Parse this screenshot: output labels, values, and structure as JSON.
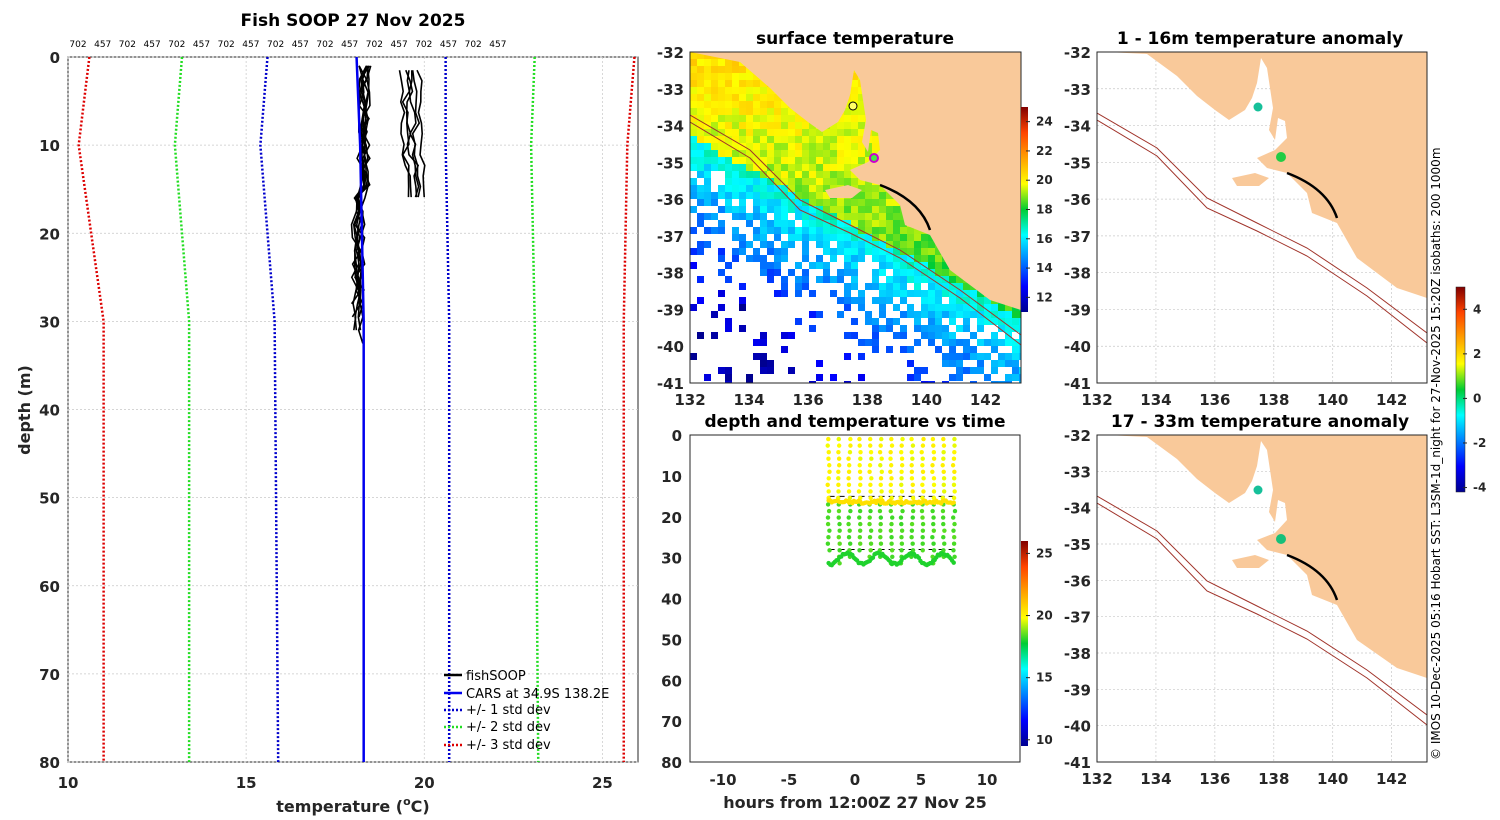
{
  "colors": {
    "land": "#f9c99a",
    "cars": "#0000ee",
    "fish": "#000000",
    "std1": "#0000cc",
    "std2": "#22dd22",
    "std3": "#dd0000",
    "isobath": "#a0332a",
    "grid": "#c8c8c8"
  },
  "chart_data": [
    {
      "id": "profile",
      "type": "line",
      "title": "Fish SOOP 27 Nov 2025",
      "xlabel": "temperature (°C)",
      "xlabel_main": "temperature (",
      "xlabel_sup": "o",
      "xlabel_end": "C)",
      "ylabel": "depth (m)",
      "xlim": [
        10,
        26
      ],
      "ylim": [
        0,
        80
      ],
      "xticks": [
        "10",
        "15",
        "20",
        "25"
      ],
      "yticks": [
        "0",
        "10",
        "20",
        "30",
        "40",
        "50",
        "60",
        "70",
        "80"
      ],
      "top_labels": [
        "702",
        "457",
        "702",
        "457",
        "702",
        "457",
        "702",
        "457",
        "702",
        "457",
        "702",
        "457",
        "702",
        "457",
        "702",
        "457",
        "702",
        "457"
      ],
      "depth": [
        0,
        10,
        30,
        80
      ],
      "cars": [
        18.1,
        18.2,
        18.3,
        18.3
      ],
      "std": [
        {
          "name": "+/- 1 std dev",
          "minus": [
            15.6,
            15.4,
            15.8,
            15.9
          ],
          "plus": [
            20.6,
            20.6,
            20.7,
            20.7
          ]
        },
        {
          "name": "+/- 2 std dev",
          "minus": [
            13.2,
            13.0,
            13.4,
            13.4
          ],
          "plus": [
            23.1,
            23.0,
            23.1,
            23.2
          ]
        },
        {
          "name": "+/- 3 std dev",
          "minus": [
            10.6,
            10.3,
            11.0,
            11.0
          ],
          "plus": [
            25.9,
            25.7,
            25.6,
            25.6
          ]
        }
      ],
      "legend": [
        "fishSOOP",
        "CARS at 34.9S 138.2E",
        "+/- 1 std dev",
        "+/- 2 std dev",
        "+/- 3 std dev"
      ],
      "legend_position": "bottom-right"
    },
    {
      "id": "surface",
      "type": "heatmap",
      "title": "surface temperature",
      "xlim": [
        132,
        143.2
      ],
      "ylim": [
        -41,
        -32
      ],
      "xticks": [
        "132",
        "134",
        "136",
        "138",
        "140",
        "142"
      ],
      "yticks": [
        "-32",
        "-33",
        "-34",
        "-35",
        "-36",
        "-37",
        "-38",
        "-39",
        "-40",
        "-41"
      ],
      "colorbar": {
        "range": [
          11,
          25
        ],
        "ticks": [
          "24",
          "22",
          "20",
          "18",
          "16",
          "14",
          "12"
        ]
      },
      "marker": {
        "lon": 138.2,
        "lat": -34.9
      }
    },
    {
      "id": "timeseries",
      "type": "scatter",
      "title": "depth and temperature vs time",
      "xlabel": "hours from 12:00Z 27 Nov 25",
      "xlim": [
        -12.5,
        12.5
      ],
      "ylim": [
        0,
        80
      ],
      "xticks": [
        "-10",
        "-5",
        "0",
        "5",
        "10"
      ],
      "yticks": [
        "0",
        "10",
        "20",
        "30",
        "40",
        "50",
        "60",
        "70",
        "80"
      ],
      "colorbar": {
        "range": [
          9.5,
          26
        ],
        "ticks": [
          "25",
          "20",
          "15",
          "10"
        ]
      },
      "casts_start": -2,
      "casts_end": 7.5,
      "casts": 13
    },
    {
      "id": "anom1",
      "type": "heatmap",
      "title": "1 - 16m temperature anomaly",
      "xticks": [
        "132",
        "134",
        "136",
        "138",
        "140",
        "142"
      ],
      "yticks": [
        "-32",
        "-33",
        "-34",
        "-35",
        "-36",
        "-37",
        "-38",
        "-39",
        "-40",
        "-41"
      ],
      "points": [
        {
          "lon": 137.4,
          "lat": -33.5,
          "anom": -0.6
        },
        {
          "lon": 138.2,
          "lat": -34.9,
          "anom": 0.1
        }
      ]
    },
    {
      "id": "anom2",
      "type": "heatmap",
      "title": "17 - 33m temperature anomaly",
      "xticks": [
        "132",
        "134",
        "136",
        "138",
        "140",
        "142"
      ],
      "yticks": [
        "-32",
        "-33",
        "-34",
        "-35",
        "-36",
        "-37",
        "-38",
        "-39",
        "-40",
        "-41"
      ],
      "points": [
        {
          "lon": 137.4,
          "lat": -33.5,
          "anom": -0.6
        },
        {
          "lon": 138.2,
          "lat": -34.9,
          "anom": -0.4
        }
      ]
    }
  ],
  "anomaly_colorbar": {
    "range": [
      -4.2,
      5
    ],
    "ticks": [
      "4",
      "2",
      "0",
      "-2",
      "-4"
    ]
  },
  "credit": "© IMOS 10-Dec-2025 05:16 Hobart SST: L3SM-1d_night for 27-Nov-2025 15:20Z isobaths: 200  1000m"
}
